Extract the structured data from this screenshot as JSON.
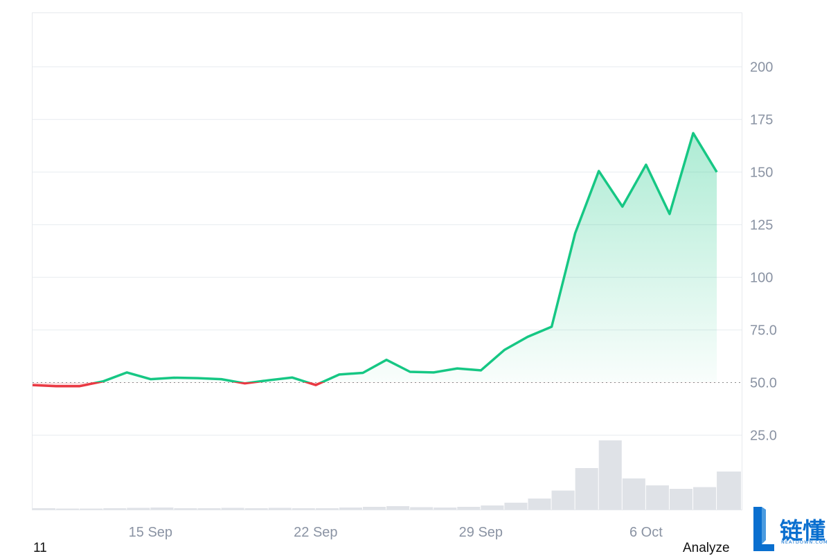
{
  "chart_data": {
    "type": "area",
    "baseline": 50,
    "ylim": [
      0,
      225
    ],
    "y_ticks": [
      "200",
      "175",
      "150",
      "125",
      "100",
      "75.0",
      "50.0",
      "25.0"
    ],
    "x_ticks": [
      "15 Sep",
      "22 Sep",
      "29 Sep",
      "6 Oct"
    ],
    "colors": {
      "up": "#16c784",
      "down": "#ea3943",
      "volume": "#d9dde3",
      "grid": "#eceff2"
    },
    "series": [
      {
        "x": [
          "2024-09-10",
          "2024-09-11",
          "2024-09-12",
          "2024-09-13",
          "2024-09-14",
          "2024-09-15",
          "2024-09-16",
          "2024-09-17",
          "2024-09-18",
          "2024-09-19",
          "2024-09-20",
          "2024-09-21",
          "2024-09-22",
          "2024-09-23",
          "2024-09-24",
          "2024-09-25",
          "2024-09-26",
          "2024-09-27",
          "2024-09-28",
          "2024-09-29",
          "2024-09-30",
          "2024-10-01",
          "2024-10-02",
          "2024-10-03",
          "2024-10-04",
          "2024-10-05",
          "2024-10-06",
          "2024-10-07",
          "2024-10-08",
          "2024-10-09"
        ],
        "y": [
          48.8,
          48.3,
          48.3,
          50.6,
          54.8,
          51.6,
          52.3,
          52.1,
          51.6,
          49.6,
          51.1,
          52.4,
          48.8,
          53.8,
          54.6,
          60.8,
          55.1,
          54.8,
          56.7,
          55.8,
          65.5,
          71.8,
          76.5,
          121.0,
          150.5,
          133.6,
          153.5,
          130.1,
          168.5,
          150.0
        ]
      }
    ],
    "volume": [
      0.4,
      0.3,
      0.3,
      0.4,
      0.5,
      0.6,
      0.4,
      0.4,
      0.5,
      0.4,
      0.5,
      0.4,
      0.4,
      0.6,
      0.8,
      1.0,
      0.7,
      0.6,
      0.8,
      1.2,
      2.0,
      3.2,
      5.5,
      12.0,
      20.0,
      9.0,
      7.0,
      6.0,
      6.5,
      11.0
    ]
  },
  "footer": {
    "left_label": "11",
    "right_label": "Analyze"
  },
  "logo": {
    "text": "链懂",
    "subtext": "NEATDOWN.COM"
  }
}
